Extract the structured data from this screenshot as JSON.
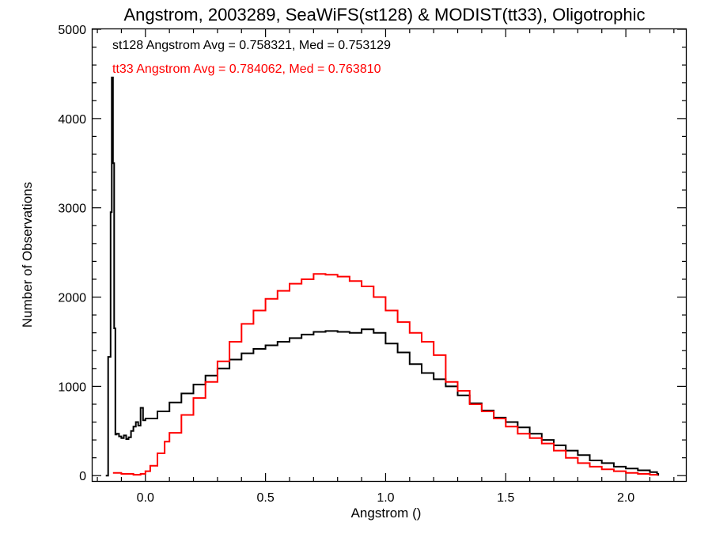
{
  "chart_data": {
    "type": "line",
    "title": "Angstrom, 2003289, SeaWiFS(st128) & MODIST(tt33), Oligotrophic",
    "xlabel": "Angstrom ()",
    "ylabel": "Number of Observations",
    "xlim": [
      -0.22,
      2.25
    ],
    "ylim": [
      -60,
      5000
    ],
    "x_ticks": [
      0.0,
      0.5,
      1.0,
      1.5,
      2.0
    ],
    "x_tick_labels": [
      "0.0",
      "0.5",
      "1.0",
      "1.5",
      "2.0"
    ],
    "y_ticks": [
      0,
      1000,
      2000,
      3000,
      4000,
      5000
    ],
    "y_tick_labels": [
      "0",
      "1000",
      "2000",
      "3000",
      "4000",
      "5000"
    ],
    "grid": false,
    "legend": "top-left",
    "annotations": [
      {
        "text": "st128 Angstrom Avg = 0.758321, Med = 0.753129",
        "color": "#000000"
      },
      {
        "text": "tt33 Angstrom Avg = 0.784062, Med = 0.763810",
        "color": "#ff0000"
      }
    ],
    "series": [
      {
        "color": "#000000",
        "step": "post",
        "x": [
          -0.165,
          -0.155,
          -0.145,
          -0.14,
          -0.135,
          -0.13,
          -0.125,
          -0.12,
          -0.11,
          -0.1,
          -0.09,
          -0.08,
          -0.07,
          -0.06,
          -0.05,
          -0.04,
          -0.03,
          -0.02,
          -0.01,
          0.0,
          0.05,
          0.1,
          0.15,
          0.2,
          0.25,
          0.3,
          0.35,
          0.4,
          0.45,
          0.5,
          0.55,
          0.6,
          0.65,
          0.7,
          0.75,
          0.8,
          0.85,
          0.9,
          0.95,
          1.0,
          1.05,
          1.1,
          1.15,
          1.2,
          1.25,
          1.3,
          1.35,
          1.4,
          1.45,
          1.5,
          1.55,
          1.6,
          1.65,
          1.7,
          1.75,
          1.8,
          1.85,
          1.9,
          1.95,
          2.0,
          2.05,
          2.1,
          2.13,
          2.135
        ],
        "y": [
          0,
          1330,
          2950,
          4460,
          3500,
          1650,
          460,
          470,
          440,
          420,
          450,
          410,
          430,
          500,
          550,
          600,
          560,
          760,
          620,
          640,
          720,
          820,
          920,
          1020,
          1120,
          1200,
          1300,
          1370,
          1420,
          1460,
          1500,
          1540,
          1580,
          1610,
          1620,
          1610,
          1600,
          1640,
          1600,
          1480,
          1380,
          1250,
          1150,
          1080,
          1000,
          900,
          810,
          730,
          650,
          600,
          540,
          470,
          400,
          340,
          280,
          230,
          170,
          140,
          100,
          80,
          60,
          40,
          20,
          0
        ]
      },
      {
        "color": "#ff0000",
        "step": "post",
        "x": [
          -0.135,
          -0.1,
          -0.05,
          -0.02,
          0.0,
          0.02,
          0.05,
          0.08,
          0.1,
          0.15,
          0.2,
          0.25,
          0.3,
          0.35,
          0.4,
          0.45,
          0.5,
          0.55,
          0.6,
          0.65,
          0.7,
          0.75,
          0.8,
          0.85,
          0.9,
          0.95,
          1.0,
          1.05,
          1.1,
          1.15,
          1.2,
          1.25,
          1.3,
          1.35,
          1.4,
          1.45,
          1.5,
          1.55,
          1.6,
          1.65,
          1.7,
          1.75,
          1.8,
          1.85,
          1.9,
          1.95,
          2.0,
          2.05,
          2.1,
          2.13
        ],
        "y": [
          30,
          20,
          10,
          20,
          50,
          110,
          250,
          380,
          480,
          680,
          870,
          1050,
          1280,
          1500,
          1700,
          1850,
          1980,
          2070,
          2150,
          2200,
          2260,
          2250,
          2230,
          2180,
          2120,
          2000,
          1850,
          1720,
          1600,
          1500,
          1350,
          1050,
          950,
          800,
          720,
          640,
          550,
          470,
          420,
          360,
          280,
          200,
          140,
          100,
          70,
          50,
          30,
          20,
          10,
          0
        ]
      }
    ]
  }
}
